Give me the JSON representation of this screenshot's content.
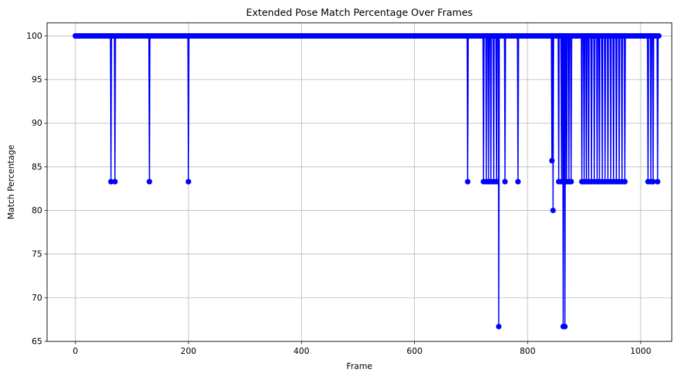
{
  "chart_data": {
    "type": "line",
    "title": "Extended Pose Match Percentage Over Frames",
    "xlabel": "Frame",
    "ylabel": "Match Percentage",
    "xlim": [
      -50,
      1055
    ],
    "ylim": [
      65,
      101.5
    ],
    "xticks": [
      0,
      200,
      400,
      600,
      800,
      1000
    ],
    "yticks": [
      65,
      70,
      75,
      80,
      85,
      90,
      95,
      100
    ],
    "grid": true,
    "series": [
      {
        "color": "#0000ff",
        "marker": "circle",
        "dips": [
          {
            "x": 63,
            "y": 83.3
          },
          {
            "x": 70,
            "y": 83.3
          },
          {
            "x": 131,
            "y": 83.3
          },
          {
            "x": 200,
            "y": 83.3
          },
          {
            "x": 694,
            "y": 83.3
          },
          {
            "x": 722,
            "y": 83.3
          },
          {
            "x": 727,
            "y": 83.3
          },
          {
            "x": 731,
            "y": 83.3
          },
          {
            "x": 735,
            "y": 83.3
          },
          {
            "x": 740,
            "y": 83.3
          },
          {
            "x": 745,
            "y": 83.3
          },
          {
            "x": 749,
            "y": 66.7
          },
          {
            "x": 760,
            "y": 83.3
          },
          {
            "x": 783,
            "y": 83.3
          },
          {
            "x": 843,
            "y": 85.7
          },
          {
            "x": 845,
            "y": 80.0
          },
          {
            "x": 855,
            "y": 83.3
          },
          {
            "x": 860,
            "y": 83.3
          },
          {
            "x": 863,
            "y": 66.7
          },
          {
            "x": 866,
            "y": 66.7
          },
          {
            "x": 869,
            "y": 83.3
          },
          {
            "x": 873,
            "y": 83.3
          },
          {
            "x": 877,
            "y": 83.3
          },
          {
            "x": 896,
            "y": 83.3
          },
          {
            "x": 900,
            "y": 83.3
          },
          {
            "x": 904,
            "y": 83.3
          },
          {
            "x": 908,
            "y": 83.3
          },
          {
            "x": 913,
            "y": 83.3
          },
          {
            "x": 918,
            "y": 83.3
          },
          {
            "x": 923,
            "y": 83.3
          },
          {
            "x": 927,
            "y": 83.3
          },
          {
            "x": 932,
            "y": 83.3
          },
          {
            "x": 937,
            "y": 83.3
          },
          {
            "x": 942,
            "y": 83.3
          },
          {
            "x": 947,
            "y": 83.3
          },
          {
            "x": 952,
            "y": 83.3
          },
          {
            "x": 957,
            "y": 83.3
          },
          {
            "x": 962,
            "y": 83.3
          },
          {
            "x": 967,
            "y": 83.3
          },
          {
            "x": 972,
            "y": 83.3
          },
          {
            "x": 1013,
            "y": 83.3
          },
          {
            "x": 1018,
            "y": 83.3
          },
          {
            "x": 1022,
            "y": 83.3
          },
          {
            "x": 1030,
            "y": 83.3
          }
        ],
        "baseline_y": 100,
        "x_start": 0,
        "x_end": 1032,
        "x_step": 3
      }
    ]
  }
}
